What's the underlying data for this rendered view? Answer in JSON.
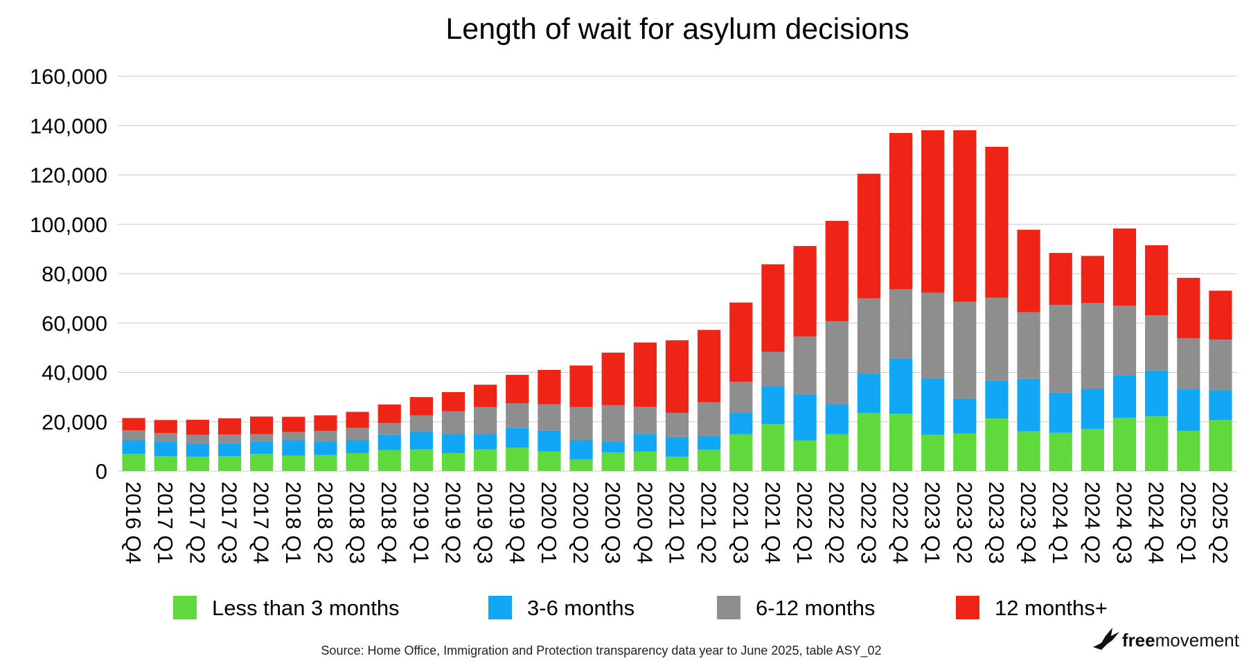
{
  "chart_data": {
    "type": "bar",
    "stacked": true,
    "title": "Length of wait for asylum decisions",
    "xlabel": "",
    "ylabel": "",
    "ylim": [
      0,
      160000
    ],
    "yticks": [
      0,
      20000,
      40000,
      60000,
      80000,
      100000,
      120000,
      140000,
      160000
    ],
    "ytick_labels": [
      "0",
      "20,000",
      "40,000",
      "60,000",
      "80,000",
      "100,000",
      "120,000",
      "140,000",
      "160,000"
    ],
    "grid": true,
    "legend_position": "bottom",
    "categories": [
      "2016 Q4",
      "2017 Q1",
      "2017 Q2",
      "2017 Q3",
      "2017 Q4",
      "2018 Q1",
      "2018 Q2",
      "2018 Q3",
      "2018 Q4",
      "2019 Q1",
      "2019 Q2",
      "2019 Q3",
      "2019 Q4",
      "2020 Q1",
      "2020 Q2",
      "2020 Q3",
      "2020 Q4",
      "2021 Q1",
      "2021 Q2",
      "2021 Q3",
      "2021 Q4",
      "2022 Q1",
      "2022 Q2",
      "2022 Q3",
      "2022 Q4",
      "2023 Q1",
      "2023 Q2",
      "2023 Q3",
      "2023 Q4",
      "2024 Q1",
      "2024 Q2",
      "2024 Q3",
      "2024 Q4",
      "2025 Q1",
      "2025 Q2"
    ],
    "series": [
      {
        "name": "Less than 3 months",
        "color": "#5fd93c",
        "values": [
          7000,
          6000,
          5800,
          6000,
          7000,
          6300,
          6500,
          7300,
          8500,
          8800,
          7300,
          8800,
          9500,
          8000,
          4700,
          7600,
          8000,
          5800,
          8700,
          15000,
          19000,
          12400,
          15000,
          23500,
          23300,
          14700,
          15200,
          21300,
          16100,
          15500,
          17100,
          21600,
          22300,
          16300,
          20700
        ]
      },
      {
        "name": "3-6 months",
        "color": "#11a7f5",
        "values": [
          5500,
          5800,
          5300,
          5200,
          5000,
          6200,
          5500,
          5200,
          6200,
          7300,
          7700,
          6200,
          8000,
          8300,
          7800,
          4400,
          7100,
          8000,
          5500,
          8700,
          15500,
          18800,
          12200,
          15800,
          22500,
          22800,
          14000,
          15300,
          21300,
          16300,
          16300,
          17300,
          18500,
          17000,
          12200
        ]
      },
      {
        "name": "6-12 months",
        "color": "#8e8e8e",
        "values": [
          4000,
          3600,
          3600,
          3600,
          3000,
          3300,
          4300,
          5000,
          4800,
          6500,
          9200,
          10900,
          10000,
          10800,
          13500,
          14700,
          11000,
          9800,
          13700,
          12500,
          13800,
          23300,
          33500,
          30700,
          27900,
          34800,
          39400,
          33700,
          27000,
          35500,
          34700,
          28100,
          22300,
          20500,
          20400
        ]
      },
      {
        "name": "12 months+",
        "color": "#ee2416",
        "values": [
          5000,
          5300,
          6100,
          6600,
          7100,
          6200,
          6300,
          6500,
          7500,
          7400,
          7800,
          9100,
          11500,
          13900,
          16800,
          21300,
          26000,
          29400,
          29300,
          32100,
          35500,
          36700,
          40700,
          50500,
          63300,
          65800,
          69500,
          61100,
          33400,
          21100,
          19100,
          31300,
          28400,
          24500,
          19800
        ]
      }
    ]
  },
  "source_note": "Source: Home Office, Immigration and Protection transparency data year to June 2025, table ASY_02",
  "logo": {
    "free": "free",
    "movement": "movement"
  },
  "icons": {
    "logo": "bird-icon"
  }
}
